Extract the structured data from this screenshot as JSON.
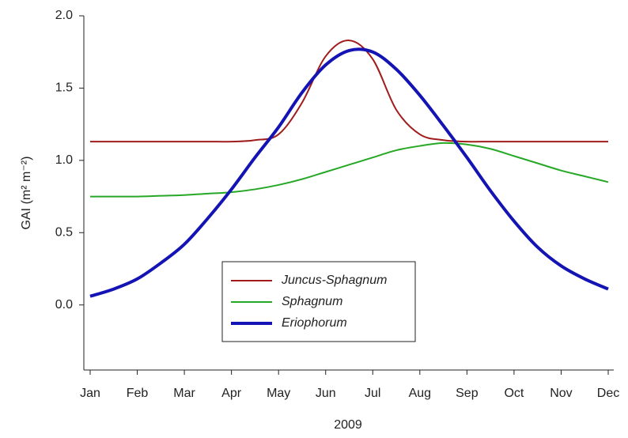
{
  "chart_data": {
    "type": "line",
    "x_label": "2009",
    "y_label": "GAI (m² m⁻²)",
    "categories": [
      "Jan",
      null,
      "Feb",
      null,
      "Mar",
      null,
      "Apr",
      null,
      "May",
      null,
      "Jun",
      null,
      "Jul",
      null,
      "Aug",
      null,
      "Sep",
      null,
      "Oct",
      null,
      "Nov",
      null,
      "Dec"
    ],
    "series": [
      {
        "name": "Juncus-Sphagnum",
        "color": "#a01c1c",
        "values": [
          1.13,
          1.13,
          1.13,
          1.13,
          1.13,
          1.13,
          1.13,
          1.14,
          1.18,
          1.4,
          1.72,
          1.83,
          1.7,
          1.35,
          1.18,
          1.14,
          1.13,
          1.13,
          1.13,
          1.13,
          1.13,
          1.13,
          1.13
        ]
      },
      {
        "name": "Sphagnum",
        "color": "#26a826",
        "values": [
          0.75,
          0.75,
          0.75,
          0.755,
          0.76,
          0.77,
          0.78,
          0.8,
          0.83,
          0.87,
          0.92,
          0.97,
          1.02,
          1.07,
          1.1,
          1.12,
          1.11,
          1.08,
          1.03,
          0.98,
          0.93,
          0.89,
          0.85
        ]
      },
      {
        "name": "Eriophorum",
        "color": "#1414b4",
        "values": [
          0.06,
          0.11,
          0.18,
          0.29,
          0.42,
          0.6,
          0.8,
          1.02,
          1.23,
          1.47,
          1.66,
          1.76,
          1.75,
          1.63,
          1.45,
          1.24,
          1.02,
          0.79,
          0.58,
          0.4,
          0.27,
          0.18,
          0.11
        ]
      }
    ],
    "ylim": [
      -0.45,
      2.0
    ],
    "yticks": [
      {
        "value": 0,
        "label": "0.0"
      },
      0.5,
      {
        "value": 1,
        "label": "1.0"
      },
      1.5,
      {
        "value": 2,
        "label": "2.0"
      }
    ],
    "grid": false
  }
}
